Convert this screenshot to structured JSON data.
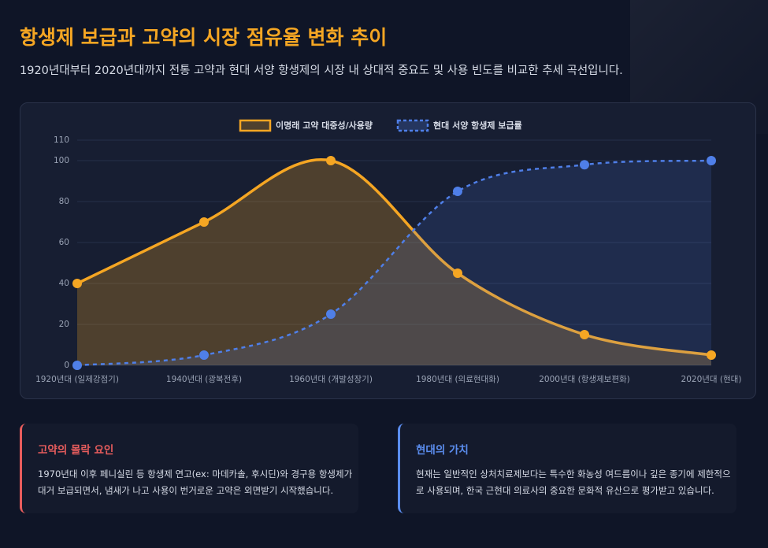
{
  "header": {
    "title": "항생제 보급과 고약의 시장 점유율 변화 추이",
    "subtitle": "1920년대부터 2020년대까지 전통 고약과 현대 서양 항생제의 시장 내 상대적 중요도 및 사용 빈도를 비교한 추세 곡선입니다."
  },
  "chart_data": {
    "type": "line",
    "categories": [
      "1920년대 (일제강점기)",
      "1940년대 (광복전후)",
      "1960년대 (개발성장기)",
      "1980년대 (의료현대화)",
      "2000년대 (항생제보편화)",
      "2020년대 (현대)"
    ],
    "series": [
      {
        "name": "이명래 고약 대중성/사용량",
        "color": "#f5a623",
        "line_style": "solid",
        "values": [
          40,
          70,
          100,
          45,
          15,
          5
        ]
      },
      {
        "name": "현대 서양 항생제 보급률",
        "color": "#4f7fe8",
        "line_style": "dashed",
        "values": [
          0,
          5,
          25,
          85,
          98,
          100
        ]
      }
    ],
    "ylim": [
      0,
      110
    ],
    "yticks": [
      0,
      20,
      40,
      60,
      80,
      100,
      110
    ],
    "grid": true,
    "area": true,
    "smooth": true,
    "legend": "top"
  },
  "cards": [
    {
      "title": "고약의 몰락 요인",
      "color": "#e85d5d",
      "body": "1970년대 이후 페니실린 등 항생제 연고(ex: 마데카솔, 후시딘)와 경구용 항생제가 대거 보급되면서, 냄새가 나고 사용이 번거로운 고약은 외면받기 시작했습니다."
    },
    {
      "title": "현대의 가치",
      "color": "#5b8def",
      "body": "현재는 일반적인 상처치료제보다는 특수한 화농성 여드름이나 깊은 종기에 제한적으로 사용되며, 한국 근현대 의료사의 중요한 문화적 유산으로 평가받고 있습니다."
    }
  ]
}
